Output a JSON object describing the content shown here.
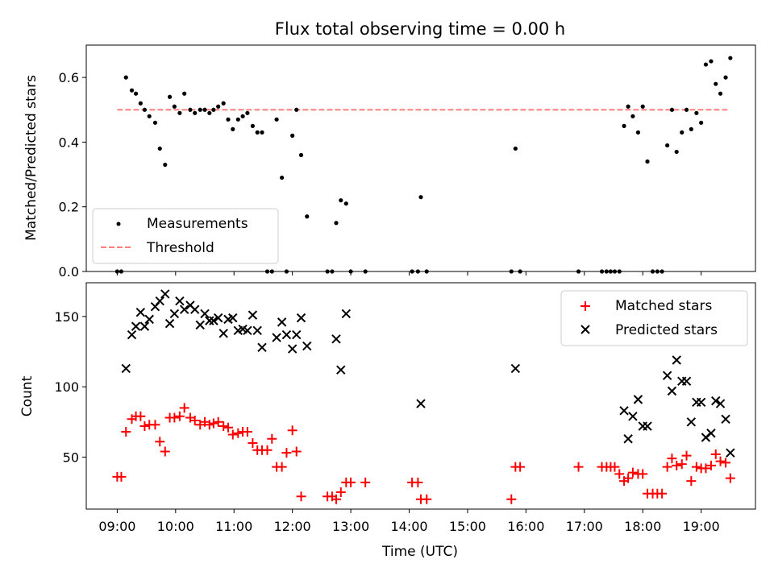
{
  "chart_data": [
    {
      "type": "scatter",
      "title": "Flux total observing time = 0.00 h",
      "xlabel": "",
      "ylabel": "Matched/Predicted stars",
      "ylim": [
        0,
        0.7
      ],
      "yticks": [
        0.0,
        0.2,
        0.4,
        0.6
      ],
      "ytick_labels": [
        "0.0",
        "0.2",
        "0.4",
        "0.6"
      ],
      "xlim": [
        8.47,
        19.93
      ],
      "grid": false,
      "legend_position": "lower-left",
      "series": [
        {
          "name": "Measurements",
          "marker": "dot",
          "color": "#000000",
          "points": [
            [
              9.0,
              0
            ],
            [
              9.07,
              0
            ],
            [
              9.15,
              0.6
            ],
            [
              9.25,
              0.56
            ],
            [
              9.32,
              0.55
            ],
            [
              9.4,
              0.52
            ],
            [
              9.47,
              0.5
            ],
            [
              9.55,
              0.48
            ],
            [
              9.65,
              0.46
            ],
            [
              9.73,
              0.38
            ],
            [
              9.82,
              0.33
            ],
            [
              9.9,
              0.54
            ],
            [
              9.98,
              0.51
            ],
            [
              10.07,
              0.49
            ],
            [
              10.15,
              0.55
            ],
            [
              10.25,
              0.5
            ],
            [
              10.33,
              0.49
            ],
            [
              10.42,
              0.5
            ],
            [
              10.5,
              0.5
            ],
            [
              10.58,
              0.49
            ],
            [
              10.65,
              0.5
            ],
            [
              10.73,
              0.51
            ],
            [
              10.82,
              0.52
            ],
            [
              10.9,
              0.47
            ],
            [
              10.98,
              0.44
            ],
            [
              11.07,
              0.47
            ],
            [
              11.15,
              0.48
            ],
            [
              11.23,
              0.49
            ],
            [
              11.32,
              0.45
            ],
            [
              11.4,
              0.43
            ],
            [
              11.48,
              0.43
            ],
            [
              11.57,
              0
            ],
            [
              11.65,
              0
            ],
            [
              11.73,
              0.47
            ],
            [
              11.82,
              0.29
            ],
            [
              11.9,
              0
            ],
            [
              12.0,
              0.42
            ],
            [
              12.07,
              0.5
            ],
            [
              12.15,
              0.36
            ],
            [
              12.25,
              0.17
            ],
            [
              12.6,
              0
            ],
            [
              12.68,
              0
            ],
            [
              12.75,
              0.15
            ],
            [
              12.83,
              0.22
            ],
            [
              12.92,
              0.21
            ],
            [
              13.0,
              0
            ],
            [
              13.25,
              0
            ],
            [
              14.05,
              0
            ],
            [
              14.15,
              0
            ],
            [
              14.2,
              0.23
            ],
            [
              14.3,
              0
            ],
            [
              15.75,
              0
            ],
            [
              15.82,
              0.38
            ],
            [
              15.9,
              0
            ],
            [
              16.9,
              0
            ],
            [
              17.3,
              0
            ],
            [
              17.38,
              0
            ],
            [
              17.45,
              0
            ],
            [
              17.52,
              0
            ],
            [
              17.6,
              0
            ],
            [
              17.68,
              0.45
            ],
            [
              17.75,
              0.51
            ],
            [
              17.83,
              0.48
            ],
            [
              17.92,
              0.43
            ],
            [
              18.0,
              0.51
            ],
            [
              18.08,
              0.34
            ],
            [
              18.17,
              0
            ],
            [
              18.25,
              0
            ],
            [
              18.33,
              0
            ],
            [
              18.42,
              0.39
            ],
            [
              18.5,
              0.5
            ],
            [
              18.58,
              0.37
            ],
            [
              18.67,
              0.43
            ],
            [
              18.75,
              0.5
            ],
            [
              18.83,
              0.44
            ],
            [
              18.92,
              0.49
            ],
            [
              19.0,
              0.46
            ],
            [
              19.08,
              0.64
            ],
            [
              19.17,
              0.65
            ],
            [
              19.25,
              0.58
            ],
            [
              19.33,
              0.55
            ],
            [
              19.42,
              0.6
            ],
            [
              19.5,
              0.66
            ]
          ]
        },
        {
          "name": "Threshold",
          "marker": "dashed-line",
          "color": "#ff7f7f",
          "points": [
            [
              9.0,
              0.5
            ],
            [
              19.45,
              0.5
            ]
          ]
        }
      ]
    },
    {
      "type": "scatter",
      "title": "",
      "xlabel": "Time (UTC)",
      "ylabel": "Count",
      "ylim": [
        13,
        174
      ],
      "yticks": [
        50,
        100,
        150
      ],
      "ytick_labels": [
        "50",
        "100",
        "150"
      ],
      "xlim": [
        8.47,
        19.93
      ],
      "xticks": [
        9,
        10,
        11,
        12,
        13,
        14,
        15,
        16,
        17,
        18,
        19
      ],
      "xtick_labels": [
        "09:00",
        "10:00",
        "11:00",
        "12:00",
        "13:00",
        "14:00",
        "15:00",
        "16:00",
        "17:00",
        "18:00",
        "19:00"
      ],
      "grid": false,
      "legend_position": "upper-right",
      "series": [
        {
          "name": "Matched stars",
          "marker": "plus",
          "color": "#ff0000",
          "points": [
            [
              9.0,
              36
            ],
            [
              9.07,
              36
            ],
            [
              9.15,
              68
            ],
            [
              9.25,
              77
            ],
            [
              9.32,
              79
            ],
            [
              9.4,
              79
            ],
            [
              9.47,
              72
            ],
            [
              9.55,
              73
            ],
            [
              9.65,
              73
            ],
            [
              9.73,
              61
            ],
            [
              9.82,
              54
            ],
            [
              9.9,
              78
            ],
            [
              9.98,
              78
            ],
            [
              10.07,
              79
            ],
            [
              10.15,
              85
            ],
            [
              10.25,
              78
            ],
            [
              10.33,
              76
            ],
            [
              10.42,
              73
            ],
            [
              10.5,
              75
            ],
            [
              10.58,
              73
            ],
            [
              10.65,
              74
            ],
            [
              10.73,
              75
            ],
            [
              10.82,
              72
            ],
            [
              10.9,
              71
            ],
            [
              10.98,
              66
            ],
            [
              11.07,
              67
            ],
            [
              11.15,
              68
            ],
            [
              11.23,
              68
            ],
            [
              11.32,
              60
            ],
            [
              11.4,
              55
            ],
            [
              11.48,
              55
            ],
            [
              11.57,
              55
            ],
            [
              11.65,
              63
            ],
            [
              11.73,
              43
            ],
            [
              11.82,
              43
            ],
            [
              11.9,
              53
            ],
            [
              12.0,
              69
            ],
            [
              12.07,
              54
            ],
            [
              12.15,
              22
            ],
            [
              12.6,
              22
            ],
            [
              12.68,
              22
            ],
            [
              12.75,
              20
            ],
            [
              12.83,
              25
            ],
            [
              12.92,
              32
            ],
            [
              13.0,
              32
            ],
            [
              13.25,
              32
            ],
            [
              14.05,
              32
            ],
            [
              14.15,
              32
            ],
            [
              14.2,
              20
            ],
            [
              14.3,
              20
            ],
            [
              15.75,
              20
            ],
            [
              15.82,
              43
            ],
            [
              15.9,
              43
            ],
            [
              16.9,
              43
            ],
            [
              17.3,
              43
            ],
            [
              17.38,
              43
            ],
            [
              17.45,
              43
            ],
            [
              17.52,
              43
            ],
            [
              17.6,
              38
            ],
            [
              17.68,
              33
            ],
            [
              17.75,
              35
            ],
            [
              17.83,
              39
            ],
            [
              17.92,
              38
            ],
            [
              18.0,
              38
            ],
            [
              18.08,
              24
            ],
            [
              18.17,
              24
            ],
            [
              18.25,
              24
            ],
            [
              18.33,
              24
            ],
            [
              18.42,
              43
            ],
            [
              18.5,
              49
            ],
            [
              18.58,
              44
            ],
            [
              18.67,
              45
            ],
            [
              18.75,
              51
            ],
            [
              18.83,
              33
            ],
            [
              18.92,
              43
            ],
            [
              19.0,
              42
            ],
            [
              19.08,
              42
            ],
            [
              19.17,
              44
            ],
            [
              19.25,
              52
            ],
            [
              19.33,
              47
            ],
            [
              19.42,
              46
            ],
            [
              19.5,
              35
            ]
          ]
        },
        {
          "name": "Predicted stars",
          "marker": "x",
          "color": "#000000",
          "points": [
            [
              9.15,
              113
            ],
            [
              9.25,
              137
            ],
            [
              9.32,
              143
            ],
            [
              9.4,
              153
            ],
            [
              9.47,
              143
            ],
            [
              9.55,
              148
            ],
            [
              9.65,
              157
            ],
            [
              9.73,
              161
            ],
            [
              9.82,
              166
            ],
            [
              9.9,
              145
            ],
            [
              9.98,
              152
            ],
            [
              10.07,
              161
            ],
            [
              10.15,
              155
            ],
            [
              10.25,
              158
            ],
            [
              10.33,
              155
            ],
            [
              10.42,
              144
            ],
            [
              10.5,
              152
            ],
            [
              10.58,
              147
            ],
            [
              10.65,
              147
            ],
            [
              10.73,
              149
            ],
            [
              10.82,
              138
            ],
            [
              10.9,
              148
            ],
            [
              10.98,
              149
            ],
            [
              11.07,
              140
            ],
            [
              11.15,
              141
            ],
            [
              11.23,
              140
            ],
            [
              11.32,
              151
            ],
            [
              11.4,
              140
            ],
            [
              11.48,
              128
            ],
            [
              11.73,
              135
            ],
            [
              11.82,
              146
            ],
            [
              11.9,
              137
            ],
            [
              12.0,
              127
            ],
            [
              12.07,
              137
            ],
            [
              12.15,
              149
            ],
            [
              12.25,
              129
            ],
            [
              12.75,
              134
            ],
            [
              12.83,
              112
            ],
            [
              12.92,
              152
            ],
            [
              14.2,
              88
            ],
            [
              15.82,
              113
            ],
            [
              17.68,
              83
            ],
            [
              17.75,
              63
            ],
            [
              17.83,
              79
            ],
            [
              17.92,
              91
            ],
            [
              18.0,
              72
            ],
            [
              18.08,
              72
            ],
            [
              18.42,
              108
            ],
            [
              18.5,
              97
            ],
            [
              18.58,
              119
            ],
            [
              18.67,
              104
            ],
            [
              18.75,
              104
            ],
            [
              18.83,
              75
            ],
            [
              18.92,
              89
            ],
            [
              19.0,
              89
            ],
            [
              19.08,
              64
            ],
            [
              19.17,
              67
            ],
            [
              19.25,
              90
            ],
            [
              19.33,
              88
            ],
            [
              19.42,
              77
            ],
            [
              19.5,
              53
            ]
          ]
        }
      ]
    }
  ]
}
